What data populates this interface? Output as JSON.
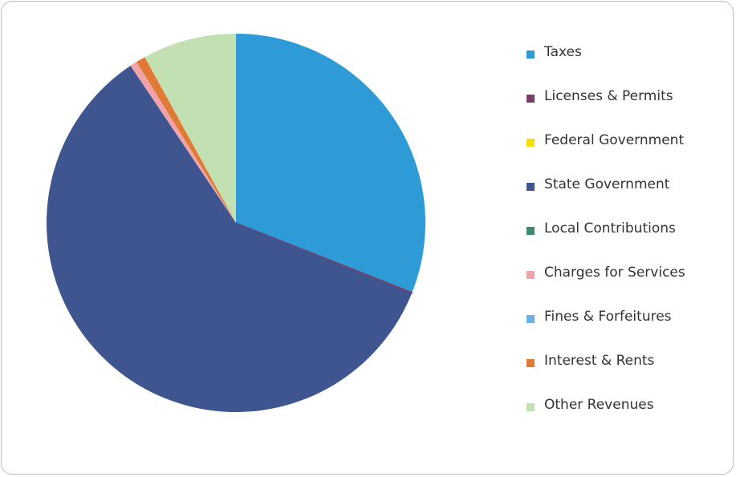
{
  "chart_data": {
    "type": "pie",
    "start_angle_deg": 0,
    "direction": "clockwise",
    "legend_position": "right",
    "slices": [
      {
        "label": "Taxes",
        "value": 31.0,
        "color": "#2e9bd6"
      },
      {
        "label": "Licenses & Permits",
        "value": 0.1,
        "color": "#7a3d6a"
      },
      {
        "label": "Federal Government",
        "value": 0.0,
        "color": "#f4e000"
      },
      {
        "label": "State Government",
        "value": 59.5,
        "color": "#3e5590"
      },
      {
        "label": "Local Contributions",
        "value": 0.0,
        "color": "#3e8c70"
      },
      {
        "label": "Charges for Services",
        "value": 0.6,
        "color": "#f0a3a8"
      },
      {
        "label": "Fines & Forfeitures",
        "value": 0.0,
        "color": "#6bb1e6"
      },
      {
        "label": "Interest & Rents",
        "value": 0.8,
        "color": "#e07a34"
      },
      {
        "label": "Other Revenues",
        "value": 8.0,
        "color": "#c3e0b3"
      }
    ]
  }
}
